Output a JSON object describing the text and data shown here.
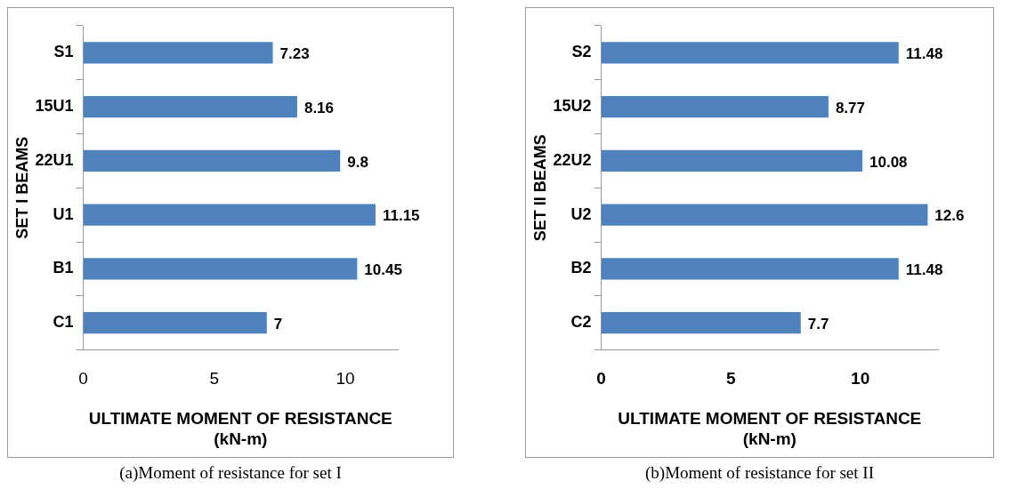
{
  "chart_data": [
    {
      "type": "bar",
      "orientation": "horizontal",
      "categories": [
        "S1",
        "15U1",
        "22U1",
        "U1",
        "B1",
        "C1"
      ],
      "values": [
        7.23,
        8.16,
        9.8,
        11.15,
        10.45,
        7
      ],
      "color": "#4f81bd",
      "xlim": [
        0,
        12
      ],
      "xticks": [
        0,
        5,
        10
      ],
      "xlabel": "ULTIMATE MOMENT OF RESISTANCE (kN-m)",
      "ylabel": "SET I BEAMS",
      "data_labels": true,
      "annotations": [
        "(a)Moment of resistance for set I"
      ]
    },
    {
      "type": "bar",
      "orientation": "horizontal",
      "categories": [
        "S2",
        "15U2",
        "22U2",
        "U2",
        "B2",
        "C2"
      ],
      "values": [
        11.48,
        8.77,
        10.08,
        12.6,
        11.48,
        7.7
      ],
      "color": "#4f81bd",
      "xlim": [
        0,
        13
      ],
      "xticks": [
        0,
        5,
        10
      ],
      "xlabel": "ULTIMATE MOMENT OF RESISTANCE (kN-m)",
      "ylabel": "SET II BEAMS",
      "data_labels": true,
      "annotations": [
        "(b)Moment of resistance for set II"
      ]
    }
  ]
}
